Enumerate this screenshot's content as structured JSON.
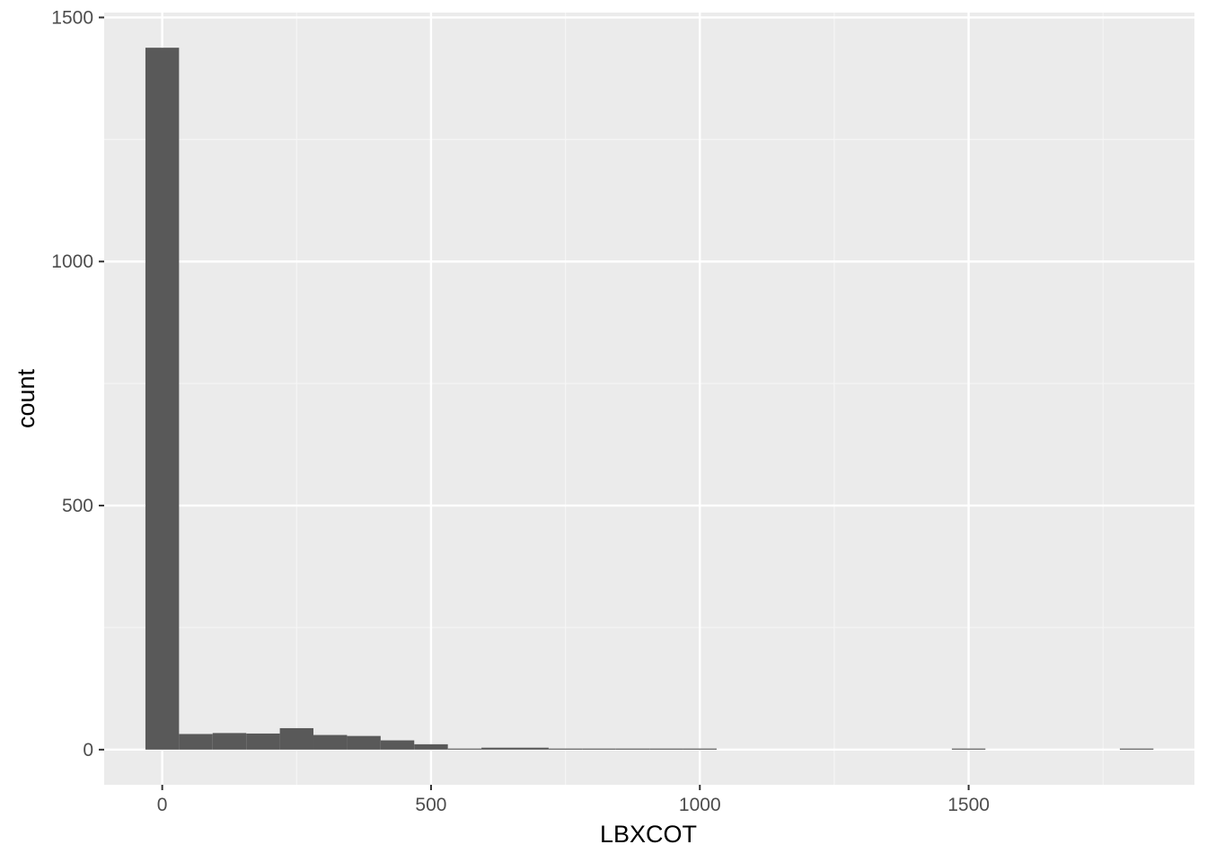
{
  "chart_data": {
    "type": "bar",
    "title": "",
    "xlabel": "LBXCOT",
    "ylabel": "count",
    "bin_width": 62.5,
    "bins": [
      {
        "x": 0,
        "count": 1438
      },
      {
        "x": 62.5,
        "count": 32
      },
      {
        "x": 125,
        "count": 34
      },
      {
        "x": 187.5,
        "count": 33
      },
      {
        "x": 250,
        "count": 44
      },
      {
        "x": 312.5,
        "count": 30
      },
      {
        "x": 375,
        "count": 28
      },
      {
        "x": 437.5,
        "count": 19
      },
      {
        "x": 500,
        "count": 11
      },
      {
        "x": 562.5,
        "count": 1
      },
      {
        "x": 625,
        "count": 4
      },
      {
        "x": 687.5,
        "count": 4
      },
      {
        "x": 750,
        "count": 1
      },
      {
        "x": 812.5,
        "count": 0
      },
      {
        "x": 875,
        "count": 1
      },
      {
        "x": 937.5,
        "count": 0
      },
      {
        "x": 1000,
        "count": 1
      },
      {
        "x": 1500,
        "count": 1
      },
      {
        "x": 1812.5,
        "count": 1
      }
    ],
    "xlim": [
      -108,
      1920
    ],
    "ylim": [
      -72,
      1510
    ],
    "x_ticks": [
      0,
      500,
      1000,
      1500
    ],
    "x_tick_labels": [
      "0",
      "500",
      "1000",
      "1500"
    ],
    "y_ticks": [
      0,
      500,
      1000,
      1500
    ],
    "y_tick_labels": [
      "0",
      "500",
      "1000",
      "1500"
    ],
    "grid": true,
    "colors": {
      "panel_background": "#ebebeb",
      "grid_major": "#ffffff",
      "grid_minor": "#f5f5f5",
      "bar_fill": "#595959",
      "tick_text": "#4d4d4d",
      "tick_mark": "#333333",
      "axis_title": "#000000"
    }
  }
}
